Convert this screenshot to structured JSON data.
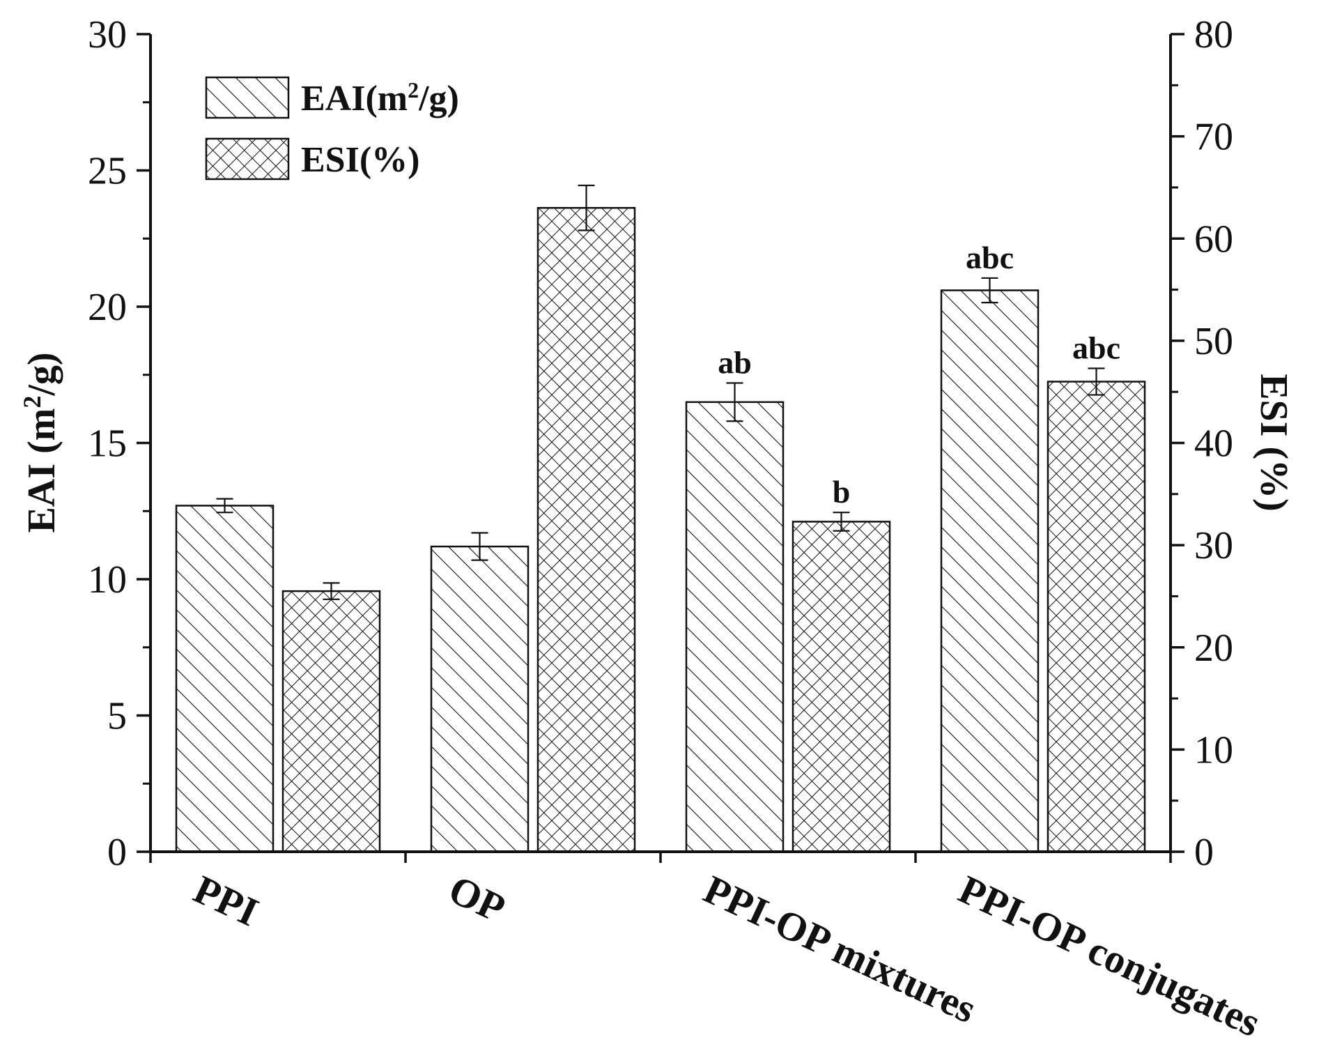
{
  "chart_data": {
    "type": "bar",
    "categories": [
      "PPI",
      "OP",
      "PPI-OP mixtures",
      "PPI-OP conjugates"
    ],
    "ylabel": {
      "main": "EAI (m",
      "sup": "2",
      "tail": "/g)"
    },
    "y2label": "ESI (%)",
    "ylim": [
      0,
      30
    ],
    "y2lim": [
      0,
      80
    ],
    "yticks": [
      0,
      5,
      10,
      15,
      20,
      25,
      30
    ],
    "y2ticks": [
      0,
      10,
      20,
      30,
      40,
      50,
      60,
      70,
      80
    ],
    "legend_position": "top-left",
    "series": [
      {
        "name": "EAI(m2/g)",
        "legend": {
          "main": "EAI(m",
          "sup": "2",
          "tail": "/g)"
        },
        "axis": "left",
        "pattern": "diagonal-hatch",
        "values": [
          12.7,
          11.2,
          16.5,
          20.6
        ],
        "errors": [
          0.25,
          0.5,
          0.7,
          0.45
        ],
        "labels": [
          "",
          "",
          "ab",
          "abc"
        ]
      },
      {
        "name": "ESI(%)",
        "legend": {
          "main": "ESI(%)",
          "sup": "",
          "tail": ""
        },
        "axis": "right",
        "pattern": "cross-hatch",
        "values": [
          25.5,
          63.0,
          32.3,
          46.0
        ],
        "errors": [
          0.8,
          2.2,
          0.9,
          1.3
        ],
        "labels": [
          "",
          "",
          "b",
          "abc"
        ]
      }
    ]
  }
}
